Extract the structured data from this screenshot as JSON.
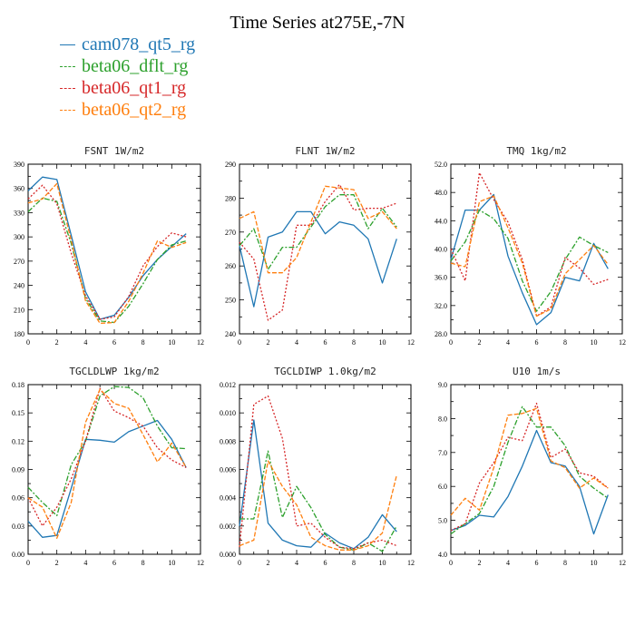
{
  "title": "Time Series at275E,-7N",
  "legend": [
    {
      "label": "cam078_qt5_rg",
      "color": "#1f77b4"
    },
    {
      "label": "beta06_dflt_rg",
      "color": "#2ca02c"
    },
    {
      "label": "beta06_qt1_rg",
      "color": "#d62728"
    },
    {
      "label": "beta06_qt2_rg",
      "color": "#ff7f0e"
    }
  ],
  "chart_data": [
    {
      "type": "line",
      "title": "FSNT  1W/m2",
      "x": [
        0,
        1,
        2,
        3,
        4,
        5,
        6,
        7,
        8,
        9,
        10,
        11
      ],
      "xticks": [
        "0",
        "2",
        "4",
        "6",
        "8",
        "10",
        "12"
      ],
      "xlim": [
        0,
        12
      ],
      "ylim": [
        180,
        390
      ],
      "yticks": [
        "180",
        "210",
        "240",
        "270",
        "300",
        "330",
        "360",
        "390"
      ],
      "series": [
        {
          "name": "cam078_qt5_rg",
          "values": [
            357,
            374,
            371,
            302,
            232,
            198,
            203,
            225,
            252,
            272,
            288,
            304
          ]
        },
        {
          "name": "beta06_dflt_rg",
          "values": [
            331,
            348,
            344,
            292,
            224,
            196,
            194,
            214,
            242,
            272,
            290,
            295
          ]
        },
        {
          "name": "beta06_qt1_rg",
          "values": [
            347,
            364,
            341,
            280,
            227,
            198,
            201,
            226,
            264,
            288,
            305,
            300
          ]
        },
        {
          "name": "beta06_qt2_rg",
          "values": [
            342,
            347,
            366,
            296,
            221,
            193,
            194,
            220,
            255,
            295,
            287,
            293
          ]
        }
      ]
    },
    {
      "type": "line",
      "title": "FLNT  1W/m2",
      "x": [
        0,
        1,
        2,
        3,
        4,
        5,
        6,
        7,
        8,
        9,
        10,
        11
      ],
      "xticks": [
        "0",
        "2",
        "4",
        "6",
        "8",
        "10",
        "12"
      ],
      "xlim": [
        0,
        12
      ],
      "ylim": [
        240,
        290
      ],
      "yticks": [
        "240",
        "250",
        "260",
        "270",
        "280",
        "290"
      ],
      "series": [
        {
          "name": "cam078_qt5_rg",
          "values": [
            266,
            248,
            268.5,
            270,
            276,
            276,
            269.5,
            273,
            272,
            268,
            255,
            268
          ]
        },
        {
          "name": "beta06_dflt_rg",
          "values": [
            266,
            271,
            259,
            265.5,
            265.5,
            271.5,
            277.5,
            281,
            281,
            271,
            277,
            271.5
          ]
        },
        {
          "name": "beta06_qt1_rg",
          "values": [
            267,
            262,
            244,
            247,
            272,
            272,
            279,
            284,
            276.5,
            277,
            277,
            278.5
          ]
        },
        {
          "name": "beta06_qt2_rg",
          "values": [
            274,
            276,
            258,
            258,
            262.5,
            273,
            283.5,
            283,
            282.5,
            274,
            276,
            271
          ]
        }
      ]
    },
    {
      "type": "line",
      "title": "TMQ  1kg/m2",
      "x": [
        0,
        1,
        2,
        3,
        4,
        5,
        6,
        7,
        8,
        9,
        10,
        11
      ],
      "xticks": [
        "0",
        "2",
        "4",
        "6",
        "8",
        "10",
        "12"
      ],
      "xlim": [
        0,
        12
      ],
      "ylim": [
        28,
        52
      ],
      "yticks": [
        "28.0",
        "32.0",
        "36.0",
        "40.0",
        "44.0",
        "48.0",
        "52.0"
      ],
      "series": [
        {
          "name": "cam078_qt5_rg",
          "values": [
            38.5,
            45.5,
            45.5,
            47.7,
            39.0,
            33.8,
            29.3,
            31.0,
            36.0,
            35.5,
            40.8,
            37.2
          ]
        },
        {
          "name": "beta06_dflt_rg",
          "values": [
            38.3,
            41.0,
            45.5,
            44.3,
            41.5,
            35.5,
            31.2,
            34.0,
            38.5,
            41.7,
            40.5,
            39.5
          ]
        },
        {
          "name": "beta06_qt1_rg",
          "values": [
            40.0,
            35.5,
            50.8,
            47.0,
            43.8,
            38.5,
            30.5,
            31.8,
            38.8,
            37.3,
            35.0,
            35.7
          ]
        },
        {
          "name": "beta06_qt2_rg",
          "values": [
            38.0,
            37.5,
            46.7,
            47.5,
            43.0,
            38.0,
            30.5,
            31.5,
            36.5,
            38.5,
            40.5,
            37.8
          ]
        }
      ]
    },
    {
      "type": "line",
      "title": "TGCLDLWP  1kg/m2",
      "x": [
        0,
        1,
        2,
        3,
        4,
        5,
        6,
        7,
        8,
        9,
        10,
        11
      ],
      "xticks": [
        "0",
        "2",
        "4",
        "6",
        "8",
        "10",
        "12"
      ],
      "xlim": [
        0,
        12
      ],
      "ylim": [
        0,
        0.18
      ],
      "yticks": [
        "0.00",
        "0.03",
        "0.06",
        "0.09",
        "0.12",
        "0.15",
        "0.18"
      ],
      "series": [
        {
          "name": "cam078_qt5_rg",
          "values": [
            0.035,
            0.018,
            0.02,
            0.07,
            0.122,
            0.121,
            0.119,
            0.13,
            0.136,
            0.142,
            0.122,
            0.092
          ]
        },
        {
          "name": "beta06_dflt_rg",
          "values": [
            0.071,
            0.055,
            0.041,
            0.095,
            0.12,
            0.168,
            0.178,
            0.177,
            0.166,
            0.136,
            0.113,
            0.112
          ]
        },
        {
          "name": "beta06_qt1_rg",
          "values": [
            0.06,
            0.03,
            0.05,
            0.08,
            0.12,
            0.176,
            0.152,
            0.145,
            0.136,
            0.113,
            0.1,
            0.092
          ]
        },
        {
          "name": "beta06_qt2_rg",
          "values": [
            0.06,
            0.05,
            0.017,
            0.055,
            0.14,
            0.175,
            0.16,
            0.155,
            0.127,
            0.098,
            0.118,
            0.092
          ]
        }
      ]
    },
    {
      "type": "line",
      "title": "TGCLDIWP  1.0kg/m2",
      "x": [
        0,
        1,
        2,
        3,
        4,
        5,
        6,
        7,
        8,
        9,
        10,
        11
      ],
      "xticks": [
        "0",
        "2",
        "4",
        "6",
        "8",
        "10",
        "12"
      ],
      "xlim": [
        0,
        12
      ],
      "ylim": [
        0,
        0.012
      ],
      "yticks": [
        "0.000",
        "0.002",
        "0.004",
        "0.006",
        "0.008",
        "0.010",
        "0.012"
      ],
      "series": [
        {
          "name": "cam078_qt5_rg",
          "values": [
            0.002,
            0.0095,
            0.0022,
            0.001,
            0.0006,
            0.0005,
            0.0015,
            0.0008,
            0.0004,
            0.0012,
            0.0028,
            0.0016
          ]
        },
        {
          "name": "beta06_dflt_rg",
          "values": [
            0.0025,
            0.0025,
            0.0073,
            0.0026,
            0.0048,
            0.0033,
            0.0014,
            0.0005,
            0.0003,
            0.0008,
            0.0002,
            0.002
          ]
        },
        {
          "name": "beta06_qt1_rg",
          "values": [
            0.0005,
            0.0106,
            0.0112,
            0.0082,
            0.002,
            0.0022,
            0.0012,
            0.0005,
            0.0004,
            0.0008,
            0.001,
            0.0006
          ]
        },
        {
          "name": "beta06_qt2_rg",
          "values": [
            0.0006,
            0.001,
            0.0066,
            0.0048,
            0.0035,
            0.0012,
            0.0006,
            0.0003,
            0.0003,
            0.0006,
            0.0015,
            0.0056
          ]
        }
      ]
    },
    {
      "type": "line",
      "title": "U10  1m/s",
      "x": [
        0,
        1,
        2,
        3,
        4,
        5,
        6,
        7,
        8,
        9,
        10,
        11
      ],
      "xticks": [
        "0",
        "2",
        "4",
        "6",
        "8",
        "10",
        "12"
      ],
      "xlim": [
        0,
        12
      ],
      "ylim": [
        4,
        9
      ],
      "yticks": [
        "4.0",
        "5.0",
        "6.0",
        "7.0",
        "8.0",
        "9.0"
      ],
      "series": [
        {
          "name": "cam078_qt5_rg",
          "values": [
            4.7,
            4.85,
            5.15,
            5.1,
            5.7,
            6.6,
            7.65,
            6.7,
            6.6,
            6.0,
            4.6,
            5.75
          ]
        },
        {
          "name": "beta06_dflt_rg",
          "values": [
            4.6,
            4.9,
            5.2,
            6.0,
            7.3,
            8.35,
            7.75,
            7.75,
            7.2,
            6.3,
            5.95,
            5.65
          ]
        },
        {
          "name": "beta06_qt1_rg",
          "values": [
            4.7,
            4.9,
            6.1,
            6.7,
            7.45,
            7.35,
            8.45,
            6.85,
            7.1,
            6.4,
            6.3,
            5.95
          ]
        },
        {
          "name": "beta06_qt2_rg",
          "values": [
            5.15,
            5.65,
            5.3,
            6.55,
            8.1,
            8.15,
            8.3,
            6.75,
            6.55,
            5.95,
            6.25,
            5.95
          ]
        }
      ]
    }
  ]
}
